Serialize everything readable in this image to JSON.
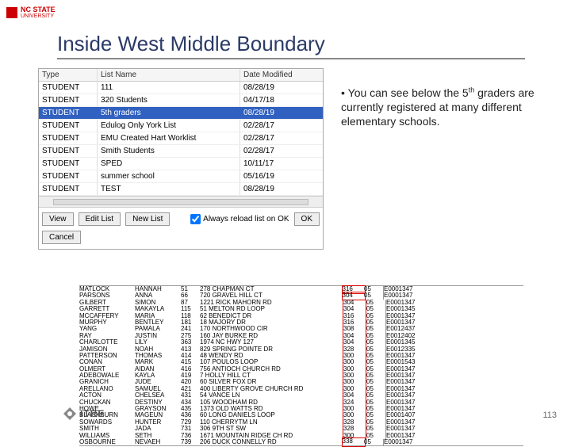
{
  "branding": {
    "nc_state": "NC STATE",
    "university": "UNIVERSITY",
    "itre": "ITRE"
  },
  "slide": {
    "title": "Inside West Middle Boundary",
    "bullet": "You can see below the 5",
    "bullet_sup": "th",
    "bullet_rest": " graders are currently registered at many different elementary schools.",
    "page_number": "113"
  },
  "list_window": {
    "headers": {
      "type": "Type",
      "name": "List Name",
      "date": "Date Modified"
    },
    "rows": [
      {
        "type": "STUDENT",
        "name": "111",
        "date": "08/28/19"
      },
      {
        "type": "STUDENT",
        "name": "320 Students",
        "date": "04/17/18"
      },
      {
        "type": "STUDENT",
        "name": "5th graders",
        "date": "08/28/19",
        "selected": true
      },
      {
        "type": "STUDENT",
        "name": "Edulog Only York List",
        "date": "02/28/17"
      },
      {
        "type": "STUDENT",
        "name": "EMU Created Hart Worklist",
        "date": "02/28/17"
      },
      {
        "type": "STUDENT",
        "name": "Smith Students",
        "date": "02/28/17"
      },
      {
        "type": "STUDENT",
        "name": "SPED",
        "date": "10/11/17"
      },
      {
        "type": "STUDENT",
        "name": "summer school",
        "date": "05/16/19"
      },
      {
        "type": "STUDENT",
        "name": "TEST",
        "date": "08/28/19"
      }
    ],
    "checkbox_label": "Always reload list on OK",
    "buttons": {
      "view": "View",
      "edit": "Edit List",
      "new": "New List",
      "ok": "OK",
      "cancel": "Cancel"
    }
  },
  "data_table": {
    "rows": [
      {
        "ln": "MATLOCK",
        "fn": "HANNAH",
        "ag": "51",
        "ad": "278 CHAPMAN CT",
        "s1": "316",
        "s2": "05",
        "id": "E0001347",
        "hl_s1": true
      },
      {
        "ln": "PARSONS",
        "fn": "ANNA",
        "ag": "66",
        "ad": "720 GRAVEL HILL CT",
        "s1": "304",
        "s2": "05",
        "id": "E0001347",
        "hl_s1": true
      },
      {
        "ln": "GILBERT",
        "fn": "SIMON",
        "ag": "87",
        "ad": "1221 RICK MAHORN RD",
        "s1": "304",
        "s2": "05",
        "id": "E0001347"
      },
      {
        "ln": "GARRETT",
        "fn": "MAKAYLA",
        "ag": "115",
        "ad": "51 MELTON RD LOOP",
        "s1": "304",
        "s2": "05",
        "id": "E0001345"
      },
      {
        "ln": "MCCAFFERY",
        "fn": "MARIA",
        "ag": "118",
        "ad": "62 BENEDICT DR",
        "s1": "316",
        "s2": "05",
        "id": "E0001347"
      },
      {
        "ln": "MURPHY",
        "fn": "BENTLEY",
        "ag": "181",
        "ad": "18 MAJORY DR",
        "s1": "316",
        "s2": "05",
        "id": "E0001347"
      },
      {
        "ln": "YANG",
        "fn": "PAMALA",
        "ag": "241",
        "ad": "170 NORTHWOOD CIR",
        "s1": "308",
        "s2": "05",
        "id": "E0012437"
      },
      {
        "ln": "RAY",
        "fn": "JUSTIN",
        "ag": "275",
        "ad": "160 JAY BURKE RD",
        "s1": "304",
        "s2": "05",
        "id": "E0012402"
      },
      {
        "ln": "CHARLOTTE",
        "fn": "LILY",
        "ag": "363",
        "ad": "1974 NC HWY 127",
        "s1": "304",
        "s2": "05",
        "id": "E0001345"
      },
      {
        "ln": "JAMISON",
        "fn": "NOAH",
        "ag": "413",
        "ad": "829 SPRING POINTE DR",
        "s1": "328",
        "s2": "05",
        "id": "E0012335"
      },
      {
        "ln": "PATTERSON",
        "fn": "THOMAS",
        "ag": "414",
        "ad": "48 WENDY RD",
        "s1": "300",
        "s2": "05",
        "id": "E0001347"
      },
      {
        "ln": "CONAN",
        "fn": "MARK",
        "ag": "415",
        "ad": "107 POULOS LOOP",
        "s1": "300",
        "s2": "05",
        "id": "E0001543"
      },
      {
        "ln": "OLMERT",
        "fn": "AIDAN",
        "ag": "416",
        "ad": "756 ANTIOCH CHURCH RD",
        "s1": "300",
        "s2": "05",
        "id": "E0001347"
      },
      {
        "ln": "ADEBOWALE",
        "fn": "KAYLA",
        "ag": "419",
        "ad": "7 HOLLY HILL CT",
        "s1": "300",
        "s2": "05",
        "id": "E0001347"
      },
      {
        "ln": "GRANICH",
        "fn": "JUDE",
        "ag": "420",
        "ad": "60 SILVER FOX DR",
        "s1": "300",
        "s2": "05",
        "id": "E0001347"
      },
      {
        "ln": "ARELLANO",
        "fn": "SAMUEL",
        "ag": "421",
        "ad": "400 LIBERTY GROVE CHURCH RD",
        "s1": "300",
        "s2": "05",
        "id": "E0001347"
      },
      {
        "ln": "ACTON",
        "fn": "CHELSEA",
        "ag": "431",
        "ad": "54 VANCE LN",
        "s1": "304",
        "s2": "05",
        "id": "E0001347"
      },
      {
        "ln": "CHUCKAN",
        "fn": "DESTINY",
        "ag": "434",
        "ad": "105 WOODHAM RD",
        "s1": "324",
        "s2": "05",
        "id": "E0001347"
      },
      {
        "ln": "HOWE",
        "fn": "GRAYSON",
        "ag": "435",
        "ad": "1373 OLD WATTS RD",
        "s1": "300",
        "s2": "05",
        "id": "E0001347"
      },
      {
        "ln": "BLACKBURN",
        "fn": "MAGEUN",
        "ag": "436",
        "ad": "60 LONG DANIELS LOOP",
        "s1": "300",
        "s2": "05",
        "id": "E0001407"
      },
      {
        "ln": "SOWARDS",
        "fn": "HUNTER",
        "ag": "729",
        "ad": "110 CHERRYTM LN",
        "s1": "328",
        "s2": "05",
        "id": "E0001347"
      },
      {
        "ln": "SMITH",
        "fn": "JADA",
        "ag": "731",
        "ad": "306 9TH ST SW",
        "s1": "328",
        "s2": "05",
        "id": "E0001347"
      },
      {
        "ln": "WILLIAMS",
        "fn": "SETH",
        "ag": "736",
        "ad": "1671 MOUNTAIN RIDGE CH RD",
        "s1": "300",
        "s2": "05",
        "id": "E0001347"
      },
      {
        "ln": "OSBOURNE",
        "fn": "NEVAEH",
        "ag": "739",
        "ad": "206 DUCK CONNELLY RD",
        "s1": "338",
        "s2": "05",
        "id": "E0001347",
        "hl_s1": true
      }
    ]
  },
  "colors": {
    "nc_red": "#c00",
    "title": "#2b3a67",
    "selected_row": "#3060c0",
    "highlight_border": "#d00",
    "grey_text": "#666"
  }
}
